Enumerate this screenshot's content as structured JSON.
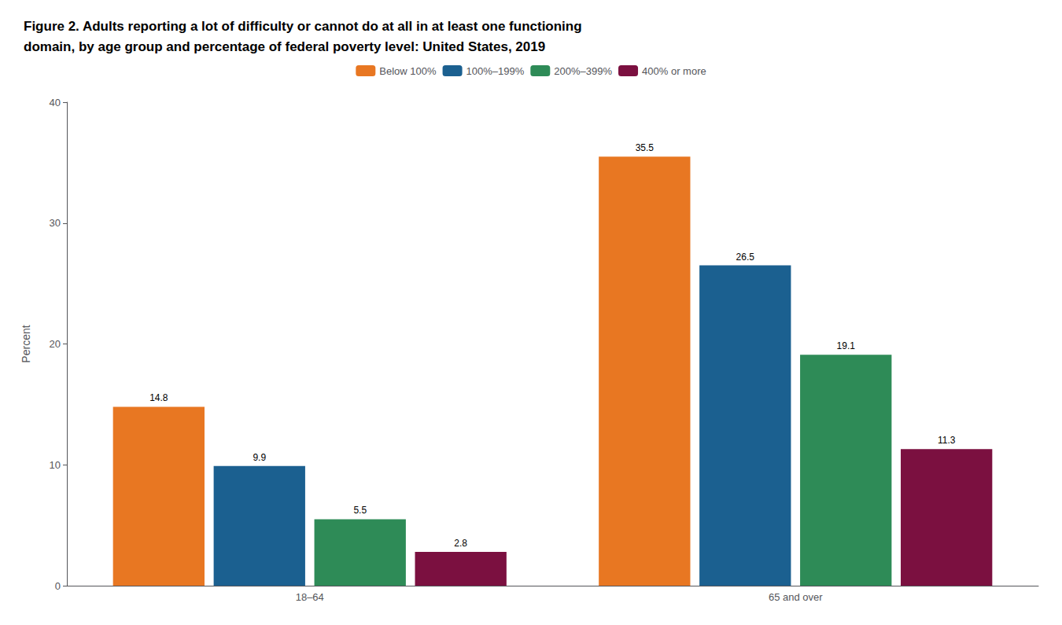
{
  "chart_data": {
    "type": "bar",
    "title": "Figure 2. Adults reporting a lot of difficulty or cannot do at all in at least one functioning\ndomain, by age group and percentage of federal poverty level: United States, 2019",
    "categories": [
      "18–64",
      "65 and over"
    ],
    "series": [
      {
        "name": "Below 100%",
        "color": "#E87722",
        "values": [
          14.8,
          35.5
        ]
      },
      {
        "name": "100%–199%",
        "color": "#1B6090",
        "values": [
          9.9,
          26.5
        ]
      },
      {
        "name": "200%–399%",
        "color": "#2E8B57",
        "values": [
          5.5,
          19.1
        ]
      },
      {
        "name": "400% or more",
        "color": "#7B1040",
        "values": [
          2.8,
          11.3
        ]
      }
    ],
    "ylabel": "Percent",
    "ylim": [
      0,
      40
    ],
    "yticks": [
      0,
      10,
      20,
      30,
      40
    ],
    "grid": false,
    "legend": "top",
    "data_labels": true
  }
}
